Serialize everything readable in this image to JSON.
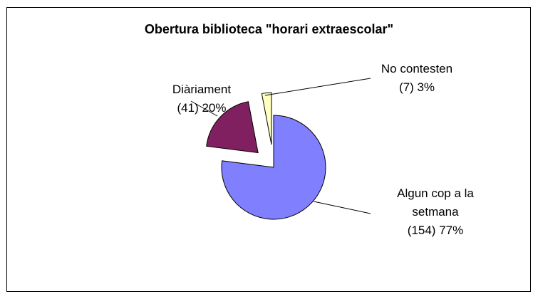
{
  "chart_data": {
    "type": "pie",
    "title": "Obertura biblioteca \"horari extraescolar\"",
    "categories": [
      "Algun cop a la setmana",
      "Diàriament",
      "No contesten"
    ],
    "values": [
      77,
      20,
      3
    ],
    "value_labels": [
      "(154)  77%",
      "(41) 20%",
      "(7) 3%"
    ],
    "colors": [
      "#8080ff",
      "#802060",
      "#ffffc0"
    ]
  }
}
